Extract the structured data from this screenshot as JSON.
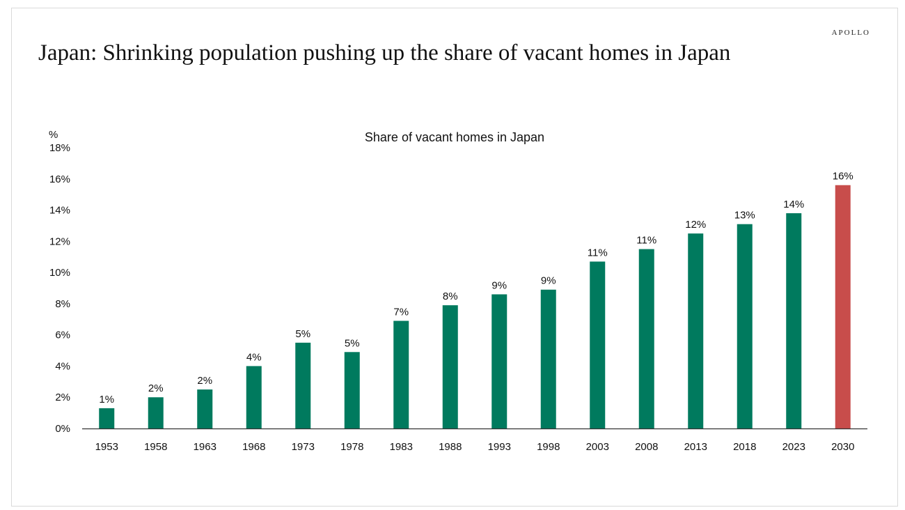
{
  "brand": "APOLLO",
  "title": "Japan: Shrinking population pushing up the share of  vacant homes in Japan",
  "colors": {
    "bar": "#007A5E",
    "projection": "#C84D4B",
    "axis": "#333333"
  },
  "chart_data": {
    "type": "bar",
    "title": "Share of vacant homes in Japan",
    "ylabel": "%",
    "xlabel": "",
    "ylim": [
      0,
      18
    ],
    "yticks": [
      0,
      2,
      4,
      6,
      8,
      10,
      12,
      14,
      16,
      18
    ],
    "ytick_labels": [
      "0%",
      "2%",
      "4%",
      "6%",
      "8%",
      "10%",
      "12%",
      "14%",
      "16%",
      "18%"
    ],
    "grid": false,
    "categories": [
      "1953",
      "1958",
      "1963",
      "1968",
      "1973",
      "1978",
      "1983",
      "1988",
      "1993",
      "1998",
      "2003",
      "2008",
      "2013",
      "2018",
      "2023",
      "2030"
    ],
    "values": [
      1.3,
      2.0,
      2.5,
      4.0,
      5.5,
      4.9,
      6.9,
      7.9,
      8.6,
      8.9,
      10.7,
      11.5,
      12.5,
      13.1,
      13.8,
      15.6
    ],
    "labels": [
      "1%",
      "2%",
      "2%",
      "4%",
      "5%",
      "5%",
      "7%",
      "8%",
      "9%",
      "9%",
      "11%",
      "11%",
      "12%",
      "13%",
      "14%",
      "16%"
    ],
    "projection_categories": [
      "2030"
    ]
  }
}
